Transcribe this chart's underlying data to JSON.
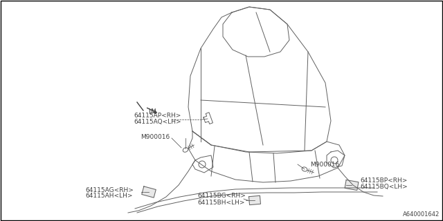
{
  "bg_color": "#ffffff",
  "border_color": "#000000",
  "line_color": "#606060",
  "figure_size": [
    6.4,
    3.2
  ],
  "dpi": 100,
  "diagram_number": "A640001642",
  "labels": {
    "top_label_line1": "64115AP<RH>",
    "top_label_line2": "64115AQ<LH>",
    "left_bolt": "M900016",
    "right_bolt": "M900016",
    "lower_left_line1": "64115AG<RH>",
    "lower_left_line2": "64115AH<LH>",
    "lower_right_line1": "64115BP<RH>",
    "lower_right_line2": "64115BQ<LH>",
    "bottom_line1": "64115BG<RH>",
    "bottom_line2": "64115BH<LH>",
    "in_label": "IN"
  },
  "font_size": 6.5,
  "label_color": "#404040"
}
